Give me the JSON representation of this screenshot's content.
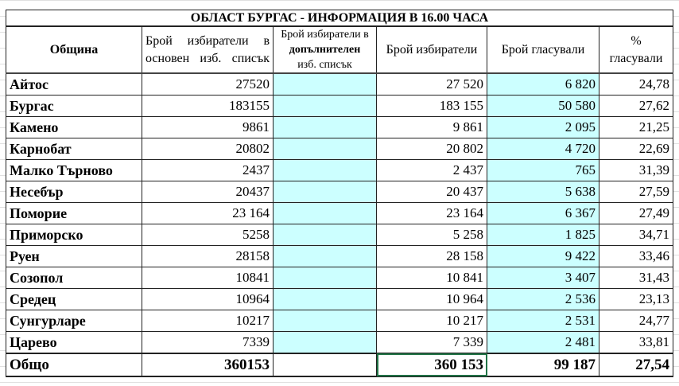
{
  "title": "ОБЛАСТ БУРГАС -  ИНФОРМАЦИЯ В 16.00 ЧАСА",
  "headers": {
    "municipality": "Община",
    "main_list": "Брой избиратели в основен изб. списък",
    "extra_list_1": "Брой избиратели в",
    "extra_list_2": "допълнителен",
    "extra_list_3": "изб. списък",
    "voters": "Брой избиратели",
    "voted": "Брой  гласували",
    "pct_1": "%",
    "pct_2": "гласували"
  },
  "rows": [
    {
      "name": "Айтос",
      "main": "27520",
      "extra": "",
      "voters": "27 520",
      "voted": "6 820",
      "pct": "24,78"
    },
    {
      "name": "Бургас",
      "main": "183155",
      "extra": "",
      "voters": "183 155",
      "voted": "50 580",
      "pct": "27,62"
    },
    {
      "name": "Камено",
      "main": "9861",
      "extra": "",
      "voters": "9 861",
      "voted": "2 095",
      "pct": "21,25"
    },
    {
      "name": "Карнобат",
      "main": "20802",
      "extra": "",
      "voters": "20 802",
      "voted": "4 720",
      "pct": "22,69"
    },
    {
      "name": "Малко Търново",
      "main": "2437",
      "extra": "",
      "voters": "2 437",
      "voted": "765",
      "pct": "31,39"
    },
    {
      "name": "Несебър",
      "main": "20437",
      "extra": "",
      "voters": "20 437",
      "voted": "5 638",
      "pct": "27,59"
    },
    {
      "name": "Поморие",
      "main": "23 164",
      "extra": "",
      "voters": "23 164",
      "voted": "6 367",
      "pct": "27,49"
    },
    {
      "name": "Приморско",
      "main": "5258",
      "extra": "",
      "voters": "5 258",
      "voted": "1 825",
      "pct": "34,71"
    },
    {
      "name": "Руен",
      "main": "28158",
      "extra": "",
      "voters": "28 158",
      "voted": "9 422",
      "pct": "33,46"
    },
    {
      "name": "Созопол",
      "main": "10841",
      "extra": "",
      "voters": "10 841",
      "voted": "3 407",
      "pct": "31,43"
    },
    {
      "name": "Средец",
      "main": "10964",
      "extra": "",
      "voters": "10 964",
      "voted": "2 536",
      "pct": "23,13"
    },
    {
      "name": "Сунгурларе",
      "main": "10217",
      "extra": "",
      "voters": "10 217",
      "voted": "2 531",
      "pct": "24,77"
    },
    {
      "name": "Царево",
      "main": "7339",
      "extra": "",
      "voters": "7 339",
      "voted": "2 481",
      "pct": "33,81"
    }
  ],
  "total": {
    "name": "Общо",
    "main": "360153",
    "extra": "",
    "voters": "360 153",
    "voted": "99 187",
    "pct": "27,54"
  },
  "colors": {
    "highlight": "#ccffff",
    "selection": "#217346"
  }
}
